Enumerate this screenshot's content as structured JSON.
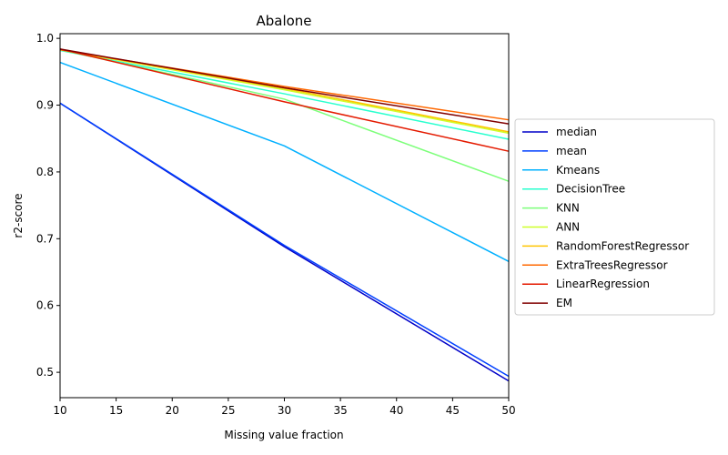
{
  "chart_data": {
    "type": "line",
    "title": "Abalone",
    "xlabel": "Missing value fraction",
    "ylabel": "r2-score",
    "xlim": [
      10,
      50
    ],
    "ylim": [
      0.462,
      1.007
    ],
    "x_ticks": [
      10,
      15,
      20,
      25,
      30,
      35,
      40,
      45,
      50
    ],
    "y_ticks": [
      0.5,
      0.6,
      0.7,
      0.8,
      0.9,
      1.0
    ],
    "y_tick_labels": [
      "0.5",
      "0.6",
      "0.7",
      "0.8",
      "0.9",
      "1.0"
    ],
    "grid": false,
    "legend_position": "center-right outside",
    "x": [
      10,
      30,
      50
    ],
    "series": [
      {
        "name": "median",
        "color": "#0000c8",
        "values": [
          0.903,
          0.688,
          0.487
        ]
      },
      {
        "name": "mean",
        "color": "#0040ff",
        "values": [
          0.903,
          0.69,
          0.494
        ]
      },
      {
        "name": "Kmeans",
        "color": "#00b0ff",
        "values": [
          0.964,
          0.839,
          0.666
        ]
      },
      {
        "name": "DecisionTree",
        "color": "#29ffce",
        "values": [
          0.982,
          0.917,
          0.849
        ]
      },
      {
        "name": "KNN",
        "color": "#7dff7a",
        "values": [
          0.983,
          0.909,
          0.786
        ]
      },
      {
        "name": "ANN",
        "color": "#ceff29",
        "values": [
          0.983,
          0.923,
          0.858
        ]
      },
      {
        "name": "RandomForestRegressor",
        "color": "#ffc400",
        "values": [
          0.983,
          0.925,
          0.86
        ]
      },
      {
        "name": "ExtraTreesRegressor",
        "color": "#ff6800",
        "values": [
          0.983,
          0.928,
          0.878
        ]
      },
      {
        "name": "LinearRegression",
        "color": "#e41a00",
        "values": [
          0.984,
          0.905,
          0.831
        ]
      },
      {
        "name": "EM",
        "color": "#800000",
        "values": [
          0.984,
          0.926,
          0.872
        ]
      }
    ]
  }
}
